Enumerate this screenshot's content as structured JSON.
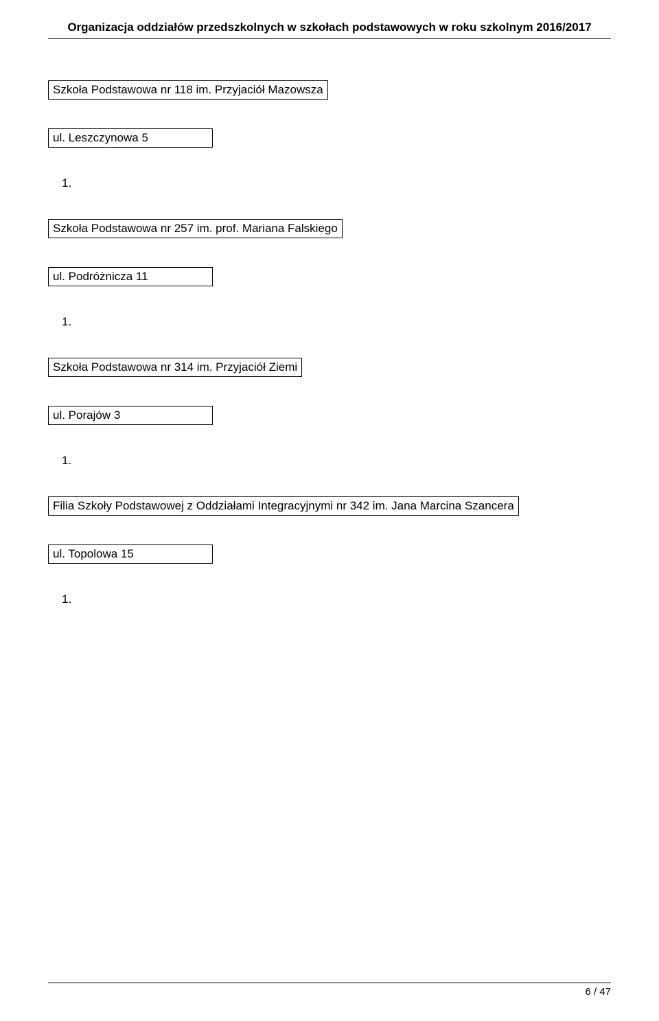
{
  "header": {
    "title": "Organizacja oddziałów przedszkolnych w szkołach podstawowych  w roku szkolnym 2016/2017"
  },
  "entries": [
    {
      "name": "Szkoła Podstawowa nr 118 im. Przyjaciół Mazowsza",
      "address": "ul. Leszczynowa 5",
      "count": "1."
    },
    {
      "name": "Szkoła Podstawowa nr 257 im. prof. Mariana Falskiego",
      "address": "ul. Podróżnicza 11",
      "count": "1."
    },
    {
      "name": "Szkoła Podstawowa nr 314 im. Przyjaciół Ziemi",
      "address": "ul. Porajów 3",
      "count": "1."
    },
    {
      "name": "Filia Szkoły Podstawowej z Oddziałami Integracyjnymi nr 342 im. Jana Marcina Szancera",
      "address": "ul. Topolowa 15",
      "count": "1."
    }
  ],
  "footer": {
    "page": "6 / 47"
  }
}
